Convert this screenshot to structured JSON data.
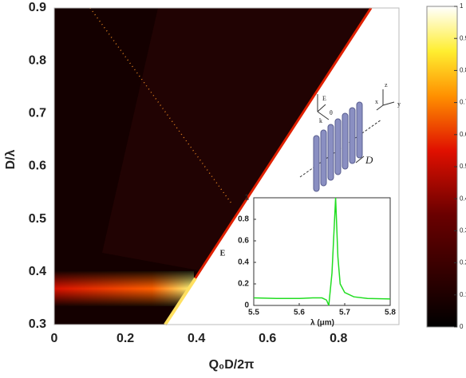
{
  "chart_data": [
    {
      "type": "heatmap",
      "xlabel": "Q₀D/2π",
      "ylabel": "D/λ",
      "xlim": [
        0,
        0.97
      ],
      "ylim": [
        0.3,
        0.9
      ],
      "xticks": [
        0,
        0.2,
        0.4,
        0.6,
        0.8
      ],
      "yticks": [
        0.3,
        0.4,
        0.5,
        0.6,
        0.7,
        0.8,
        0.9
      ],
      "colorbar": {
        "lim": [
          0,
          1
        ],
        "ticks": [
          0,
          0.1,
          0.2,
          0.3,
          0.4,
          0.5,
          0.6,
          0.7,
          0.8,
          0.9,
          1
        ]
      },
      "annotations": [
        "E",
        "k",
        "θ",
        "z",
        "x",
        "y",
        "D"
      ]
    },
    {
      "type": "line",
      "xlabel": "λ (μm)",
      "ylabel": "E",
      "xlim": [
        5.5,
        5.8
      ],
      "ylim": [
        0,
        1
      ],
      "xticks": [
        5.5,
        5.6,
        5.7,
        5.8
      ],
      "yticks": [
        0,
        0.2,
        0.4,
        0.6,
        0.8,
        1
      ],
      "series": [
        {
          "color": "#22dd22",
          "x": [
            5.5,
            5.55,
            5.6,
            5.63,
            5.65,
            5.66,
            5.665,
            5.672,
            5.68,
            5.685,
            5.69,
            5.7,
            5.72,
            5.75,
            5.8
          ],
          "values": [
            0.07,
            0.065,
            0.065,
            0.07,
            0.07,
            0.05,
            0.0,
            0.3,
            1.0,
            0.45,
            0.2,
            0.12,
            0.08,
            0.065,
            0.06
          ]
        }
      ]
    }
  ]
}
